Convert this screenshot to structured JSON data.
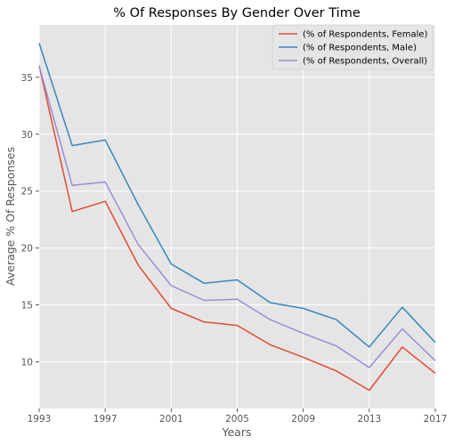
{
  "chart_data": {
    "type": "line",
    "title": "% Of Responses By Gender Over Time",
    "xlabel": "Years",
    "ylabel": "Average % Of Responses",
    "x": [
      1993,
      1995,
      1997,
      1999,
      2001,
      2003,
      2005,
      2007,
      2009,
      2011,
      2013,
      2015,
      2017
    ],
    "xlim": [
      1993,
      2017
    ],
    "ylim": [
      5.9,
      39.6
    ],
    "xticks": [
      1993,
      1997,
      2001,
      2005,
      2009,
      2013,
      2017
    ],
    "yticks": [
      10,
      15,
      20,
      25,
      30,
      35
    ],
    "grid": true,
    "legend_position": "top-right",
    "series": [
      {
        "name": "(% of Respondents, Female)",
        "color": "#e24a33",
        "values": [
          36.0,
          23.2,
          24.1,
          18.5,
          14.7,
          13.5,
          13.2,
          11.5,
          10.4,
          9.2,
          7.5,
          11.3,
          9.0
        ]
      },
      {
        "name": "(% of Respondents, Male)",
        "color": "#348abd",
        "values": [
          38.0,
          29.0,
          29.5,
          23.8,
          18.6,
          16.9,
          17.2,
          15.2,
          14.7,
          13.7,
          11.3,
          14.8,
          11.7
        ]
      },
      {
        "name": "(% of Respondents, Overall)",
        "color": "#988ed5",
        "values": [
          36.0,
          25.5,
          25.8,
          20.3,
          16.7,
          15.4,
          15.5,
          13.7,
          12.5,
          11.4,
          9.5,
          12.9,
          10.1
        ]
      }
    ]
  }
}
